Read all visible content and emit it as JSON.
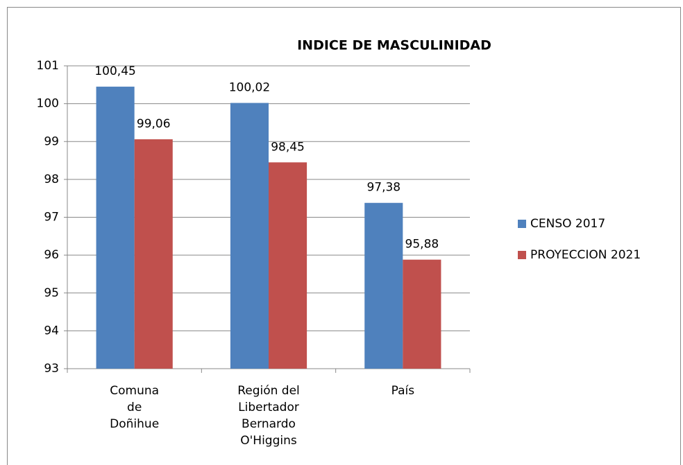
{
  "chart_data": {
    "type": "bar",
    "title": "INDICE DE MASCULINIDAD",
    "categories": [
      "Comuna de Doñihue",
      "Región del Libertador Bernardo O'Higgins",
      "País"
    ],
    "series": [
      {
        "name": "CENSO 2017",
        "color": "#4f81bd",
        "values": [
          100.45,
          100.02,
          97.38
        ],
        "value_labels": [
          "100,45",
          "100,02",
          "97,38"
        ]
      },
      {
        "name": "PROYECCION 2021",
        "color": "#c0504d",
        "values": [
          99.06,
          98.45,
          95.88
        ],
        "value_labels": [
          "99,06",
          "98,45",
          "95,88"
        ]
      }
    ],
    "ylim": [
      93,
      101
    ],
    "yticks": [
      93,
      94,
      95,
      96,
      97,
      98,
      99,
      100,
      101
    ],
    "grid": true,
    "legend": "right"
  }
}
